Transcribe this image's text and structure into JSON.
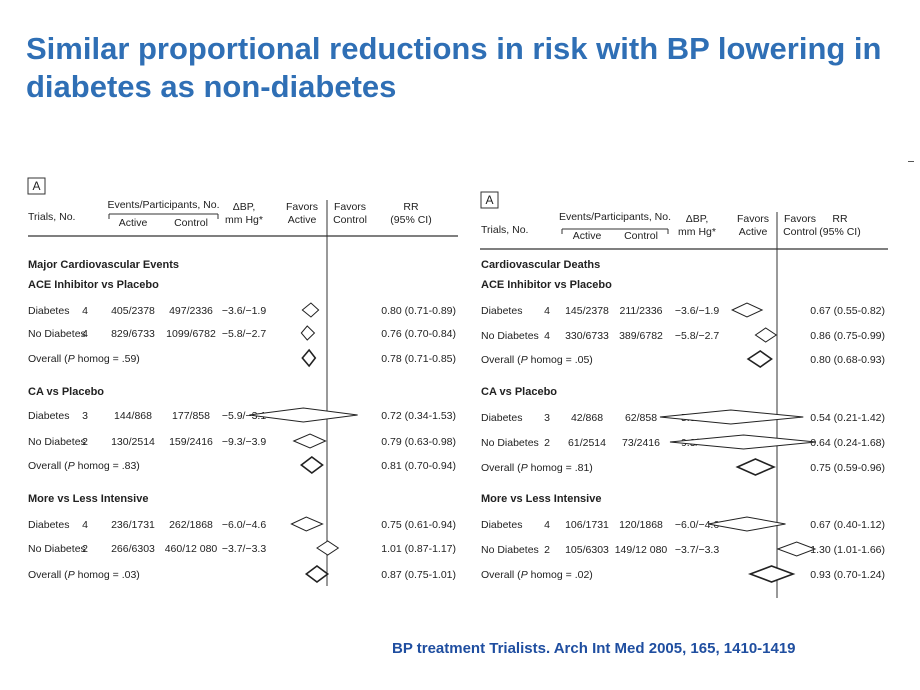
{
  "slide": {
    "title": "Similar proportional reductions in risk with BP lowering in diabetes as non-diabetes",
    "citation": "BP treatment Trialists. Arch Int Med 2005, 165, 1410-1419"
  },
  "colors": {
    "title": "#2f6fb5",
    "citation": "#1f4ea0",
    "text": "#222222"
  },
  "headers": {
    "trials": "Trials, No.",
    "events": "Events/Participants, No.",
    "active": "Active",
    "control": "Control",
    "dbp_top": "ΔBP,",
    "dbp_bottom": "mm Hg*",
    "favors_active_top": "Favors",
    "favors_active_bottom": "Active",
    "favors_control_top": "Favors",
    "favors_control_bottom": "Control",
    "rr_top": "RR",
    "rr_bottom": "(95% CI)"
  },
  "panels": [
    {
      "letter": "A",
      "outcome": "Major Cardiovascular Events",
      "groups": [
        {
          "comparison": "ACE Inhibitor vs Placebo",
          "rows": [
            {
              "label": "Diabetes",
              "trials": "4",
              "active": "405/2378",
              "control": "497/2336",
              "dbp": "−3.6/−1.9",
              "rr_text": "0.80 (0.71-0.89)",
              "rr": 0.8,
              "ci": [
                0.71,
                0.89
              ],
              "overall": false
            },
            {
              "label": "No Diabetes",
              "trials": "4",
              "active": "829/6733",
              "control": "1099/6782",
              "dbp": "−5.8/−2.7",
              "rr_text": "0.76 (0.70-0.84)",
              "rr": 0.76,
              "ci": [
                0.7,
                0.84
              ],
              "overall": false
            },
            {
              "label": "Overall (P homog = .59)",
              "trials": "",
              "active": "",
              "control": "",
              "dbp": "",
              "rr_text": "0.78 (0.71-0.85)",
              "rr": 0.78,
              "ci": [
                0.71,
                0.85
              ],
              "overall": true
            }
          ]
        },
        {
          "comparison": "CA vs Placebo",
          "rows": [
            {
              "label": "Diabetes",
              "trials": "3",
              "active": "144/868",
              "control": "177/858",
              "dbp": "−5.9/−3.1",
              "rr_text": "0.72 (0.34-1.53)",
              "rr": 0.72,
              "ci": [
                0.34,
                1.53
              ],
              "overall": false
            },
            {
              "label": "No Diabetes",
              "trials": "2",
              "active": "130/2514",
              "control": "159/2416",
              "dbp": "−9.3/−3.9",
              "rr_text": "0.79 (0.63-0.98)",
              "rr": 0.79,
              "ci": [
                0.63,
                0.98
              ],
              "overall": false
            },
            {
              "label": "Overall (P homog = .83)",
              "trials": "",
              "active": "",
              "control": "",
              "dbp": "",
              "rr_text": "0.81 (0.70-0.94)",
              "rr": 0.81,
              "ci": [
                0.7,
                0.94
              ],
              "overall": true
            }
          ]
        },
        {
          "comparison": "More vs Less Intensive",
          "rows": [
            {
              "label": "Diabetes",
              "trials": "4",
              "active": "236/1731",
              "control": "262/1868",
              "dbp": "−6.0/−4.6",
              "rr_text": "0.75 (0.61-0.94)",
              "rr": 0.75,
              "ci": [
                0.61,
                0.94
              ],
              "overall": false
            },
            {
              "label": "No Diabetes",
              "trials": "2",
              "active": "266/6303",
              "control": "460/12 080",
              "dbp": "−3.7/−3.3",
              "rr_text": "1.01 (0.87-1.17)",
              "rr": 1.01,
              "ci": [
                0.87,
                1.17
              ],
              "overall": false
            },
            {
              "label": "Overall (P homog = .03)",
              "trials": "",
              "active": "",
              "control": "",
              "dbp": "",
              "rr_text": "0.87 (0.75-1.01)",
              "rr": 0.87,
              "ci": [
                0.75,
                1.01
              ],
              "overall": true
            }
          ]
        }
      ]
    },
    {
      "letter": "A",
      "outcome": "Cardiovascular Deaths",
      "groups": [
        {
          "comparison": "ACE Inhibitor vs Placebo",
          "rows": [
            {
              "label": "Diabetes",
              "trials": "4",
              "active": "145/2378",
              "control": "211/2336",
              "dbp": "−3.6/−1.9",
              "rr_text": "0.67 (0.55-0.82)",
              "rr": 0.67,
              "ci": [
                0.55,
                0.82
              ],
              "overall": false
            },
            {
              "label": "No Diabetes",
              "trials": "4",
              "active": "330/6733",
              "control": "389/6782",
              "dbp": "−5.8/−2.7",
              "rr_text": "0.86 (0.75-0.99)",
              "rr": 0.86,
              "ci": [
                0.75,
                0.99
              ],
              "overall": false
            },
            {
              "label": "Overall (P homog = .05)",
              "trials": "",
              "active": "",
              "control": "",
              "dbp": "",
              "rr_text": "0.80 (0.68-0.93)",
              "rr": 0.8,
              "ci": [
                0.68,
                0.93
              ],
              "overall": true
            }
          ]
        },
        {
          "comparison": "CA vs Placebo",
          "rows": [
            {
              "label": "Diabetes",
              "trials": "3",
              "active": "42/868",
              "control": "62/858",
              "dbp": "−5.9/−3.1",
              "rr_text": "0.54 (0.21-1.42)",
              "rr": 0.54,
              "ci": [
                0.21,
                1.42
              ],
              "overall": false
            },
            {
              "label": "No Diabetes",
              "trials": "2",
              "active": "61/2514",
              "control": "73/2416",
              "dbp": "−9.3/−3.9",
              "rr_text": "0.64 (0.24-1.68)",
              "rr": 0.64,
              "ci": [
                0.24,
                1.68
              ],
              "overall": false
            },
            {
              "label": "Overall (P homog = .81)",
              "trials": "",
              "active": "",
              "control": "",
              "dbp": "",
              "rr_text": "0.75 (0.59-0.96)",
              "rr": 0.75,
              "ci": [
                0.59,
                0.96
              ],
              "overall": true
            }
          ]
        },
        {
          "comparison": "More vs Less Intensive",
          "rows": [
            {
              "label": "Diabetes",
              "trials": "4",
              "active": "106/1731",
              "control": "120/1868",
              "dbp": "−6.0/−4.6",
              "rr_text": "0.67 (0.40-1.12)",
              "rr": 0.67,
              "ci": [
                0.4,
                1.12
              ],
              "overall": false
            },
            {
              "label": "No Diabetes",
              "trials": "2",
              "active": "105/6303",
              "control": "149/12 080",
              "dbp": "−3.7/−3.3",
              "rr_text": "1.30 (1.01-1.66)",
              "rr": 1.3,
              "ci": [
                1.01,
                1.66
              ],
              "overall": false
            },
            {
              "label": "Overall (P homog = .02)",
              "trials": "",
              "active": "",
              "control": "",
              "dbp": "",
              "rr_text": "0.93 (0.70-1.24)",
              "rr": 0.93,
              "ci": [
                0.7,
                1.24
              ],
              "overall": true
            }
          ]
        }
      ]
    }
  ]
}
